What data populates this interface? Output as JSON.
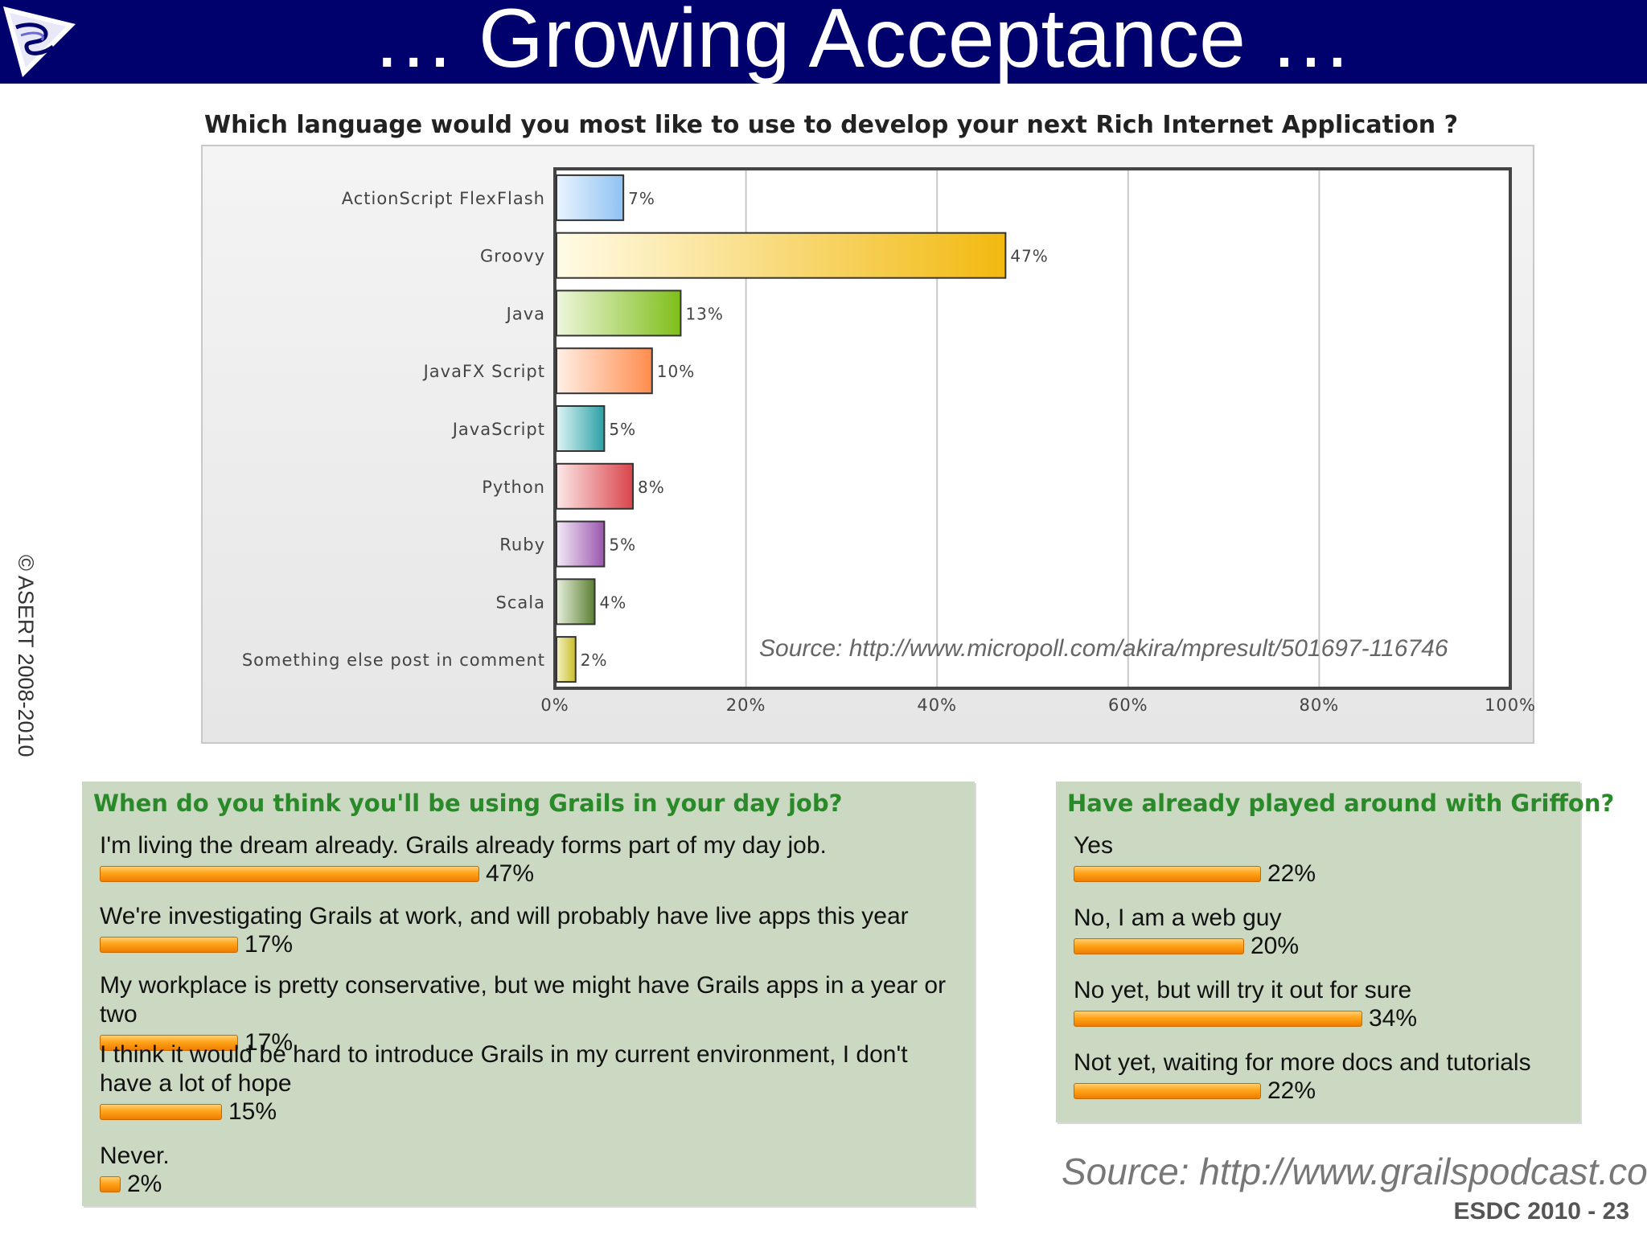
{
  "header": {
    "title": "… Growing Acceptance …"
  },
  "copyright": "© ASERT 2008-2010",
  "chart_data": {
    "type": "bar",
    "orientation": "horizontal",
    "title": "Which language would you most like to use to develop your next Rich Internet Application ?",
    "categories": [
      "ActionScript FlexFlash",
      "Groovy",
      "Java",
      "JavaFX Script",
      "JavaScript",
      "Python",
      "Ruby",
      "Scala",
      "Something else post in comment"
    ],
    "values": [
      7,
      47,
      13,
      10,
      5,
      8,
      5,
      4,
      2
    ],
    "value_labels": [
      "7%",
      "47%",
      "13%",
      "10%",
      "5%",
      "8%",
      "5%",
      "4%",
      "2%"
    ],
    "xlim": [
      0,
      100
    ],
    "x_ticks": [
      "0%",
      "20%",
      "40%",
      "60%",
      "80%",
      "100%"
    ],
    "grid": true,
    "bar_colors": [
      [
        "#eaf4ff",
        "#8fc2f2"
      ],
      [
        "#fffbe6",
        "#f2b90f"
      ],
      [
        "#eef6dc",
        "#7fbf1a"
      ],
      [
        "#fff0e6",
        "#ff8c4d"
      ],
      [
        "#dff4f4",
        "#2aa0a6"
      ],
      [
        "#fde8e8",
        "#d9444a"
      ],
      [
        "#f4eaf7",
        "#9b56ad"
      ],
      [
        "#e8f0dd",
        "#5a7f32"
      ],
      [
        "#f4f2c4",
        "#c8bd28"
      ]
    ],
    "source": "Source: http://www.micropoll.com/akira/mpresult/501697-116746"
  },
  "poll_grails": {
    "title": "When do you think you'll be using Grails in your day job?",
    "items": [
      {
        "text": "I'm living the dream already. Grails already forms part of my day job.",
        "pct": "47%",
        "value": 47
      },
      {
        "text": "We're investigating Grails at work, and will probably have live apps this year",
        "pct": "17%",
        "value": 17
      },
      {
        "text": "My workplace is pretty conservative, but we might have Grails apps in a year or two",
        "pct": "17%",
        "value": 17
      },
      {
        "text": "I think it would be hard to introduce Grails in my current environment, I don't have a lot of hope",
        "pct": "15%",
        "value": 15
      },
      {
        "text": "Never.",
        "pct": "2%",
        "value": 2
      }
    ]
  },
  "poll_griffon": {
    "title": "Have already played around with Griffon?",
    "items": [
      {
        "text": "Yes",
        "pct": "22%",
        "value": 22
      },
      {
        "text": "No, I am a web guy",
        "pct": "20%",
        "value": 20
      },
      {
        "text": "No yet, but will try it out for sure",
        "pct": "34%",
        "value": 34
      },
      {
        "text": "Not yet, waiting for more docs and tutorials",
        "pct": "22%",
        "value": 22
      }
    ]
  },
  "footer": {
    "source": "Source: http://www.grailspodcast.com",
    "slide_id": "ESDC 2010 - 23"
  }
}
